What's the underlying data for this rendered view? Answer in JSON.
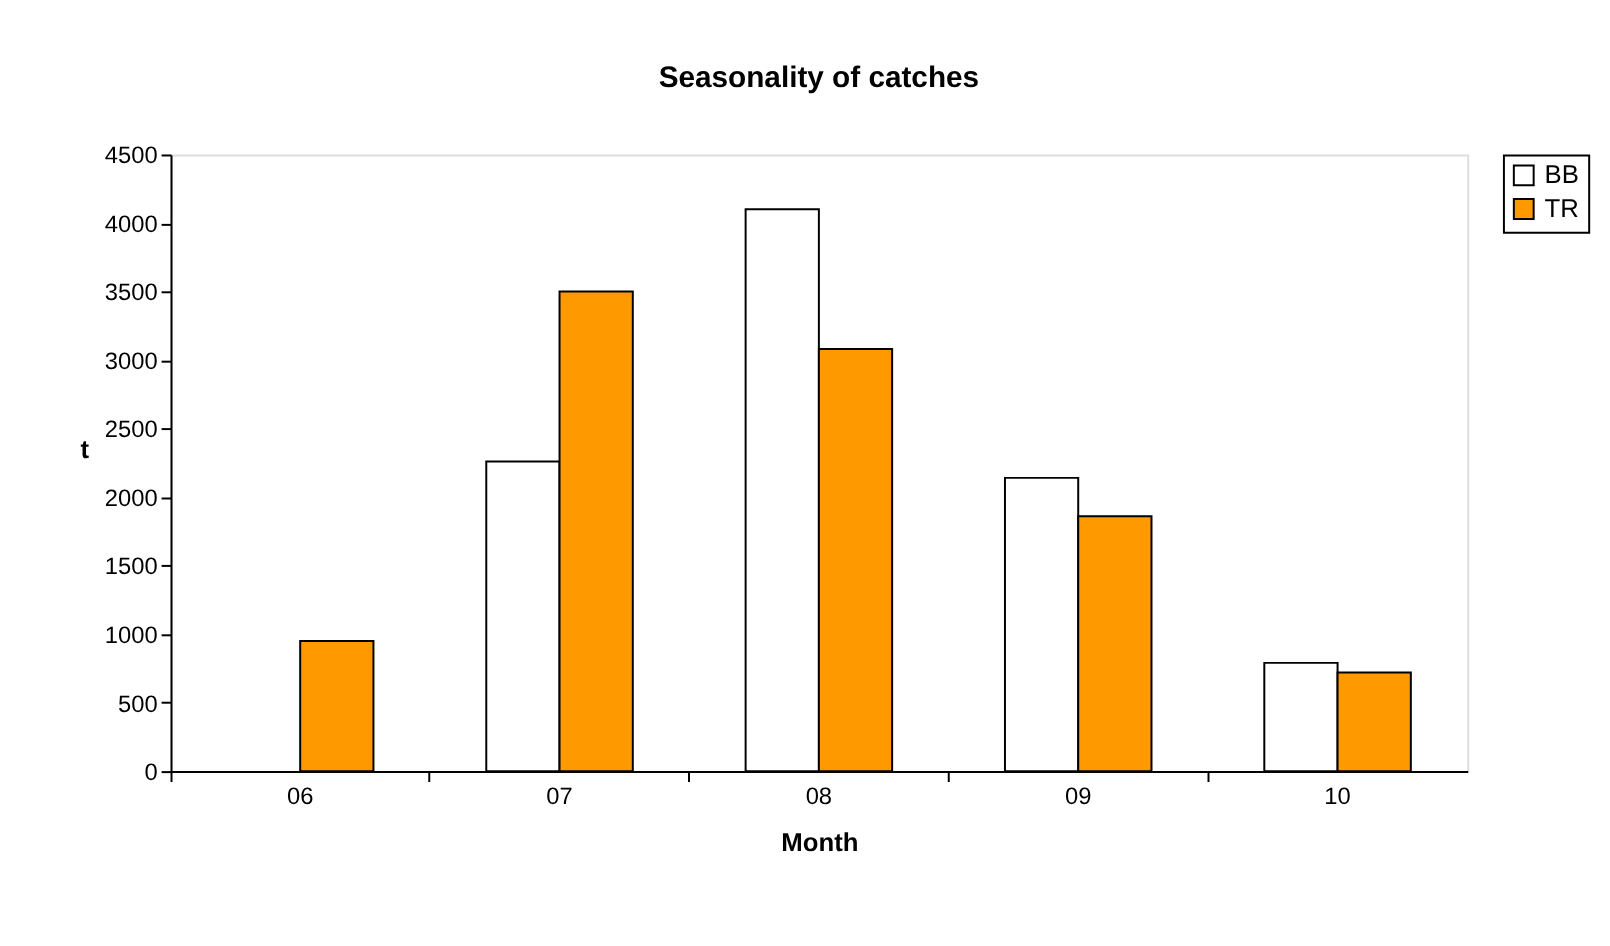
{
  "chart_data": {
    "type": "bar",
    "title": "Seasonality of catches",
    "xlabel": "Month",
    "ylabel": "t",
    "categories": [
      "06",
      "07",
      "08",
      "09",
      "10"
    ],
    "series": [
      {
        "name": "BB",
        "color": "#ffffff",
        "values": [
          null,
          2260,
          4100,
          2140,
          790
        ]
      },
      {
        "name": "TR",
        "color": "#ff9900",
        "values": [
          950,
          3500,
          3080,
          1860,
          720
        ]
      }
    ],
    "ylim": [
      0,
      4500
    ],
    "yticks": [
      0,
      500,
      1000,
      1500,
      2000,
      2500,
      3000,
      3500,
      4000,
      4500
    ],
    "grid": false,
    "legend": "right"
  }
}
